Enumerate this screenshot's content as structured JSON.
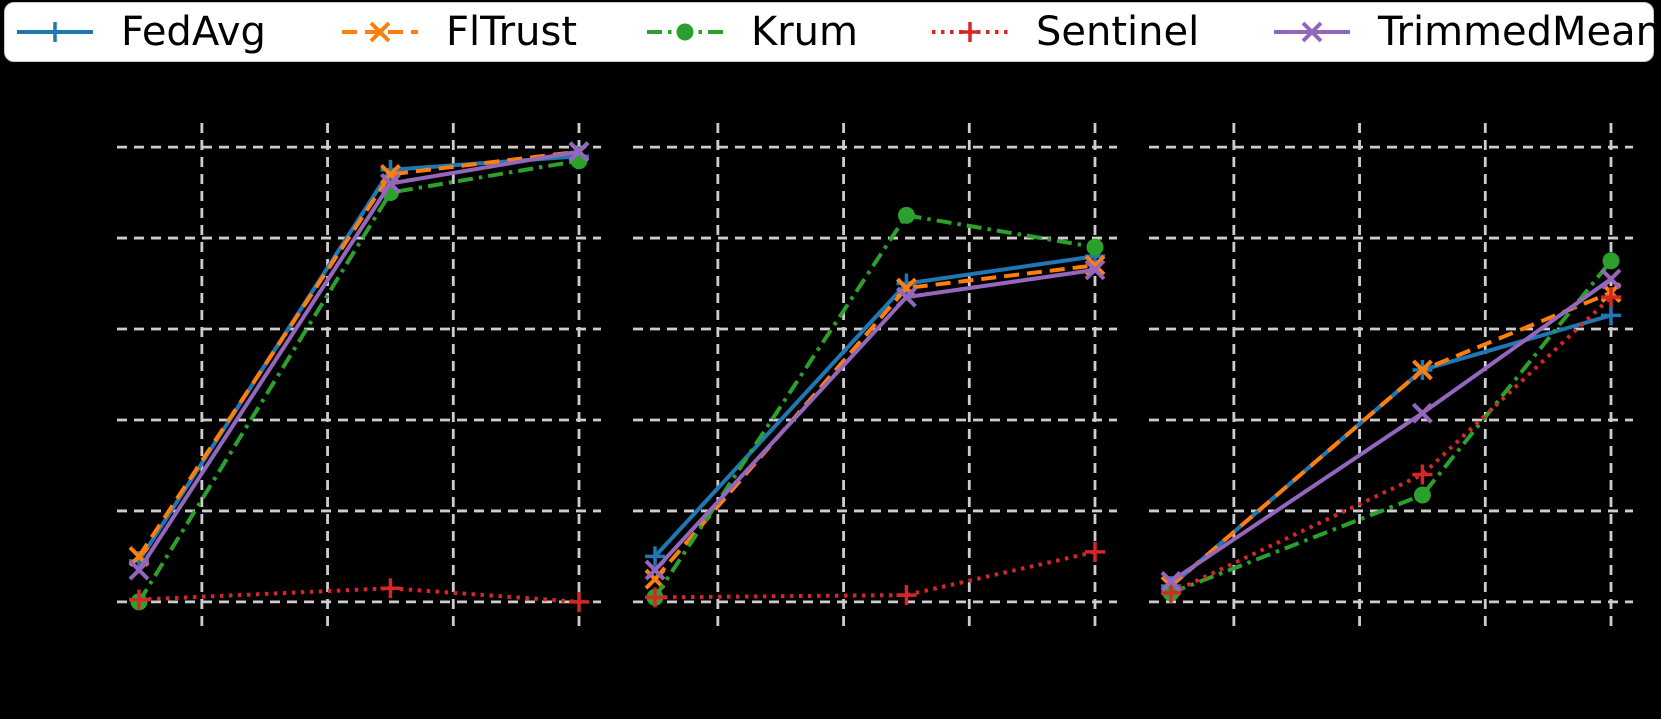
{
  "figure": {
    "background": "#000000",
    "tick_labels_visible": false,
    "axis_labels_visible": false
  },
  "legend": {
    "background": "#ffffff",
    "border_color": "#c8c8c8",
    "text_color": "#000000",
    "position": "top",
    "entries": [
      {
        "label": "FedAvg",
        "color": "#1f77b4",
        "linestyle": "solid",
        "marker": "plus"
      },
      {
        "label": "FlTrust",
        "color": "#ff7f0e",
        "linestyle": "dashed",
        "marker": "x"
      },
      {
        "label": "Krum",
        "color": "#2ca02c",
        "linestyle": "dashdot",
        "marker": "circle"
      },
      {
        "label": "Sentinel",
        "color": "#d62728",
        "linestyle": "dotted",
        "marker": "plus"
      },
      {
        "label": "TrimmedMean",
        "color": "#9467bd",
        "linestyle": "solid",
        "marker": "x"
      }
    ]
  },
  "grid": {
    "visible": true,
    "color": "#cdcdcd",
    "linestyle": "dashed"
  },
  "chart_data": [
    {
      "type": "line",
      "title": "",
      "xlabel": "",
      "ylabel": "",
      "x": [
        0.1,
        0.5,
        0.8
      ],
      "xlim": [
        0.065,
        0.835
      ],
      "ylim": [
        -0.064,
        1.053
      ],
      "xticks": [
        0.2,
        0.4,
        0.6,
        0.8
      ],
      "yticks": [
        0.0,
        0.2,
        0.4,
        0.6,
        0.8,
        1.0
      ],
      "grid": true,
      "series": [
        {
          "name": "FedAvg",
          "values": [
            0.09,
            0.95,
            0.98
          ]
        },
        {
          "name": "FlTrust",
          "values": [
            0.1,
            0.94,
            0.99
          ]
        },
        {
          "name": "Krum",
          "values": [
            0.0,
            0.9,
            0.97
          ]
        },
        {
          "name": "Sentinel",
          "values": [
            0.005,
            0.03,
            0.0
          ]
        },
        {
          "name": "TrimmedMean",
          "values": [
            0.07,
            0.92,
            0.99
          ]
        }
      ]
    },
    {
      "type": "line",
      "title": "",
      "xlabel": "",
      "ylabel": "",
      "x": [
        0.1,
        0.5,
        0.8
      ],
      "xlim": [
        0.065,
        0.835
      ],
      "ylim": [
        -0.064,
        1.053
      ],
      "xticks": [
        0.2,
        0.4,
        0.6,
        0.8
      ],
      "yticks": [
        0.0,
        0.2,
        0.4,
        0.6,
        0.8,
        1.0
      ],
      "grid": true,
      "series": [
        {
          "name": "FedAvg",
          "values": [
            0.1,
            0.7,
            0.76
          ]
        },
        {
          "name": "FlTrust",
          "values": [
            0.05,
            0.69,
            0.74
          ]
        },
        {
          "name": "Krum",
          "values": [
            0.01,
            0.85,
            0.78
          ]
        },
        {
          "name": "Sentinel",
          "values": [
            0.01,
            0.015,
            0.11
          ]
        },
        {
          "name": "TrimmedMean",
          "values": [
            0.07,
            0.67,
            0.73
          ]
        }
      ]
    },
    {
      "type": "line",
      "title": "",
      "xlabel": "",
      "ylabel": "",
      "x": [
        0.1,
        0.5,
        0.8
      ],
      "xlim": [
        0.065,
        0.835
      ],
      "ylim": [
        -0.064,
        1.053
      ],
      "xticks": [
        0.2,
        0.4,
        0.6,
        0.8
      ],
      "yticks": [
        0.0,
        0.2,
        0.4,
        0.6,
        0.8,
        1.0
      ],
      "grid": true,
      "series": [
        {
          "name": "FedAvg",
          "values": [
            0.035,
            0.51,
            0.63
          ]
        },
        {
          "name": "FlTrust",
          "values": [
            0.035,
            0.51,
            0.68
          ]
        },
        {
          "name": "Krum",
          "values": [
            0.02,
            0.235,
            0.75
          ]
        },
        {
          "name": "Sentinel",
          "values": [
            0.02,
            0.28,
            0.67
          ]
        },
        {
          "name": "TrimmedMean",
          "values": [
            0.045,
            0.415,
            0.71
          ]
        }
      ]
    }
  ]
}
